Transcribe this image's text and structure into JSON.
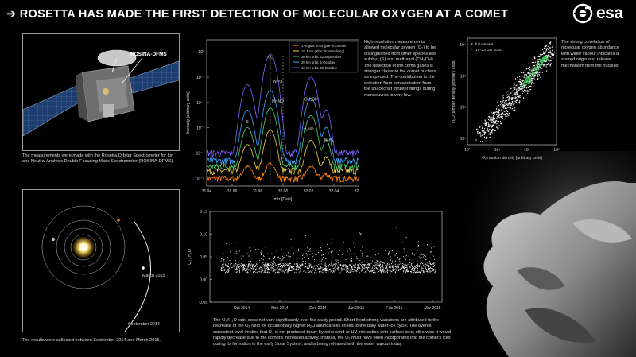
{
  "title": "➔ ROSETTA HAS MADE THE FIRST DETECTION OF MOLECULAR OXYGEN AT A COMET",
  "logo": {
    "text": "esa"
  },
  "instrument": {
    "label": "ROSINA-DFMS",
    "caption": "The measurements were made with the Rosetta Orbiter Spectrometer for Ion and Neutral Analysis Double-Focusing Mass Spectrometer (ROSINA-DFMS)."
  },
  "orbit": {
    "march_label": "March 2015",
    "sept_label": "September 2014",
    "caption": "The results were collected between September 2014 and March 2015."
  },
  "spectrum_caption": "High-resolution measurements allowed molecular oxygen (O₂) to be distinguished from other species like sulphur (S) and methanol (CH₃OH). The detection of the coma gases is stronger closer to the comet nucleus, as expected. The contribution to the detection from contamination from the spacecraft thruster firings during manoeuvres is very low.",
  "correlation_caption": "The strong correlation of molecular oxygen abundance with water vapour indicates a shared origin and release mechanism from the nucleus.",
  "ratio_caption": "The O₂/H₂O ratio does not vary significantly over the study period. Short-lived strong variations are attributed to the decrease of the O₂ ratio for occasionally higher H₂O abundances linked to the daily water-ice cycle. The overall consistent level implies that O₂ is not produced today by solar wind or UV interaction with surface ices, otherwise it would rapidly decrease due to the comet's increased activity. Instead, the O₂ must have been incorporated into the comet's ices during its formation in the early Solar System, and is being released with the water vapour today.",
  "chart_data": [
    {
      "type": "line",
      "ylabel": "Intensity [arbitrary units]",
      "xlabel": "m/z [Da/e]",
      "x_ticks": [
        "31.94",
        "31.96",
        "31.98",
        "32.00",
        "32.02",
        "32.04",
        "32.06"
      ],
      "xlim": [
        31.94,
        32.06
      ],
      "y_ticks": [
        "10⁰",
        "10⁻¹",
        "10⁻²",
        "10⁻³",
        "10⁻⁴",
        "10⁻⁵"
      ],
      "yscale": "log",
      "ylim": [
        5e-06,
        3
      ],
      "legend": [
        "1 August 2014 (pre-encounter)",
        "18 June (after thruster firing)",
        "30 km orbit, 11 September",
        "20 km orbit, 1 October",
        "10 km orbit, 22 October"
      ],
      "series_colors": [
        "#ff7f0e",
        "#f5d742",
        "#4fd36b",
        "#3ea4ff",
        "#8060ff"
      ],
      "peak_labels": [
        "O₂",
        "S",
        "N¹⁵O",
        "H¹⁵NO",
        "CH₃OH",
        "H₂NO",
        "N₂H₄"
      ],
      "peaks": [
        {
          "x": 31.972,
          "width": 0.004
        },
        {
          "x": 31.99,
          "width": 0.004
        },
        {
          "x": 32.022,
          "width": 0.004
        },
        {
          "x": 32.034,
          "width": 0.003
        }
      ],
      "series": [
        {
          "baseline": 1e-05,
          "amps": [
            2e-05,
            3e-05,
            2e-05,
            5e-06
          ]
        },
        {
          "baseline": 2e-05,
          "amps": [
            0.0002,
            0.0008,
            0.0003,
            5e-05
          ]
        },
        {
          "baseline": 3e-05,
          "amps": [
            0.001,
            0.006,
            0.003,
            0.0003
          ]
        },
        {
          "baseline": 5e-05,
          "amps": [
            0.005,
            0.03,
            0.015,
            0.001
          ]
        },
        {
          "baseline": 0.0001,
          "amps": [
            0.05,
            0.8,
            0.1,
            0.005
          ]
        }
      ]
    },
    {
      "type": "scatter",
      "xlabel": "O₂ number density [arbitrary units]",
      "ylabel": "H₂O number density [arbitrary units]",
      "xscale": "log",
      "yscale": "log",
      "x_ticks": [
        "10⁰",
        "10¹",
        "10²",
        "10³"
      ],
      "y_ticks": [
        "10⁴",
        "10³",
        "10²",
        "10¹"
      ],
      "legend": [
        "full dataset",
        "17–23 Oct 2014"
      ],
      "series_colors": [
        "#ffffff",
        "#3ec35a"
      ]
    },
    {
      "type": "scatter",
      "ylabel": "O₂ / H₂O",
      "x_ticks": [
        "Oct 2014",
        "Nov 2014",
        "Dec 2014",
        "Jan 2015",
        "Feb 2015",
        "Mar 2015"
      ],
      "y_ticks": [
        "0.15",
        "0.10",
        "0.05",
        "0.00",
        "-0.05"
      ],
      "ylim": [
        -0.05,
        0.15
      ],
      "grid": false
    }
  ]
}
